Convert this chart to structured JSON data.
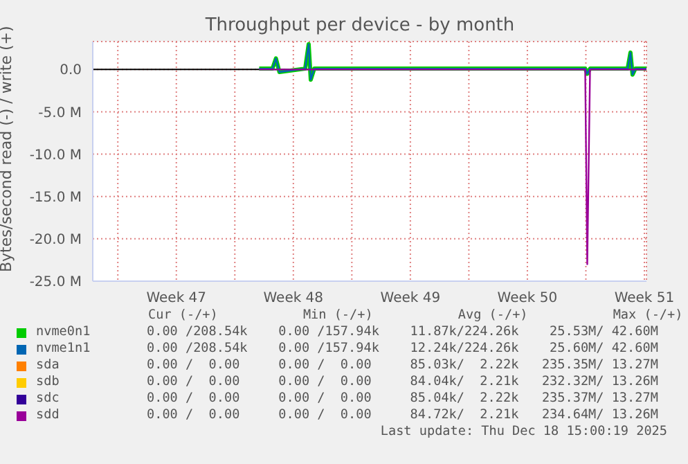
{
  "chart_data": {
    "type": "line",
    "title": "Throughput per device - by month",
    "ylabel": "Bytes/second read (-) / write (+)",
    "x": [
      "2025-11-25T11:00",
      "2025-11-26T06:00",
      "2025-11-26T11:00",
      "2025-11-26T16:00",
      "2025-11-28T05:00",
      "2025-11-28T10:00",
      "2025-11-28T13:00",
      "2025-11-28T18:00",
      "2025-12-14T23:00",
      "2025-12-15T02:00",
      "2025-12-15T06:00",
      "2025-12-17T12:00",
      "2025-12-17T16:00",
      "2025-12-17T19:00",
      "2025-12-17T23:00",
      "2025-12-18T15:00"
    ],
    "series": [
      {
        "name": "nvme0n1",
        "color": "#00cc00",
        "values": [
          0.1,
          0.1,
          1.3,
          -0.3,
          0.1,
          3.0,
          -1.2,
          0.1,
          0.1,
          -0.5,
          0.1,
          0.1,
          2.0,
          -0.6,
          0.1,
          0.1
        ]
      },
      {
        "name": "nvme1n1",
        "color": "#0066b3",
        "values": [
          0.1,
          0.1,
          1.3,
          -0.3,
          0.1,
          3.0,
          -1.2,
          0.1,
          0.1,
          -0.5,
          0.1,
          0.1,
          2.0,
          -0.6,
          0.1,
          0.1
        ]
      },
      {
        "name": "sda",
        "color": "#ff8000",
        "values": [
          null,
          null,
          null,
          null,
          null,
          null,
          null,
          null,
          null,
          null,
          null,
          null,
          null,
          null,
          null,
          null
        ]
      },
      {
        "name": "sdb",
        "color": "#ffcc00",
        "values": [
          null,
          null,
          null,
          null,
          null,
          null,
          null,
          null,
          null,
          null,
          null,
          null,
          null,
          null,
          null,
          null
        ]
      },
      {
        "name": "sdc",
        "color": "#330099",
        "values": [
          null,
          null,
          null,
          null,
          null,
          null,
          null,
          null,
          null,
          null,
          null,
          null,
          null,
          null,
          null,
          null
        ]
      },
      {
        "name": "sdd",
        "color": "#990099",
        "values": [
          0,
          0,
          0,
          0,
          0,
          0,
          0,
          0,
          0,
          -23.0,
          0,
          0,
          0,
          0,
          0,
          0
        ]
      }
    ],
    "xlim": [
      "2025-11-15T12:00",
      "2025-12-18T15:00"
    ],
    "xticks": [
      {
        "value": "2025-11-17",
        "label": null
      },
      {
        "value": "2025-11-20T12:00",
        "label": "Week 47"
      },
      {
        "value": "2025-11-24",
        "label": null
      },
      {
        "value": "2025-11-27T12:00",
        "label": "Week 48"
      },
      {
        "value": "2025-12-01",
        "label": null
      },
      {
        "value": "2025-12-04T12:00",
        "label": "Week 49"
      },
      {
        "value": "2025-12-08",
        "label": null
      },
      {
        "value": "2025-12-11T12:00",
        "label": "Week 50"
      },
      {
        "value": "2025-12-15",
        "label": null
      },
      {
        "value": "2025-12-18T12:00",
        "label": "Week 51"
      }
    ],
    "ylim": [
      -25,
      3.3
    ],
    "yticks": [
      {
        "value": -25,
        "label": "-25.0 M"
      },
      {
        "value": -20,
        "label": "-20.0 M"
      },
      {
        "value": -15,
        "label": "-15.0 M"
      },
      {
        "value": -10,
        "label": "-10.0 M"
      },
      {
        "value": -5,
        "label": "-5.0 M"
      },
      {
        "value": 0,
        "label": "0.0"
      }
    ],
    "ref_lines": [
      {
        "axis": "y",
        "value": 0,
        "color": "#000000"
      }
    ],
    "grid": true,
    "legend": "bottom",
    "marker": "none",
    "line_style": "solid",
    "annotations": [
      "Cur (-/+)           Min (-/+)           Avg (-/+)           Max (-/+)",
      "0.00 /208.54k    0.00 /157.94k    11.87k/224.26k    25.53M/ 42.60M",
      "0.00 /208.54k    0.00 /157.94k    12.24k/224.26k    25.60M/ 42.60M",
      "0.00 /  0.00     0.00 /  0.00     85.03k/  2.22k   235.35M/ 13.27M",
      "0.00 /  0.00     0.00 /  0.00     84.04k/  2.21k   232.32M/ 13.26M",
      "0.00 /  0.00     0.00 /  0.00     85.04k/  2.22k   235.37M/ 13.27M",
      "0.00 /  0.00     0.00 /  0.00     84.72k/  2.21k   234.64M/ 13.26M",
      "Last update: Thu Dec 18 15:00:19 2025"
    ]
  }
}
